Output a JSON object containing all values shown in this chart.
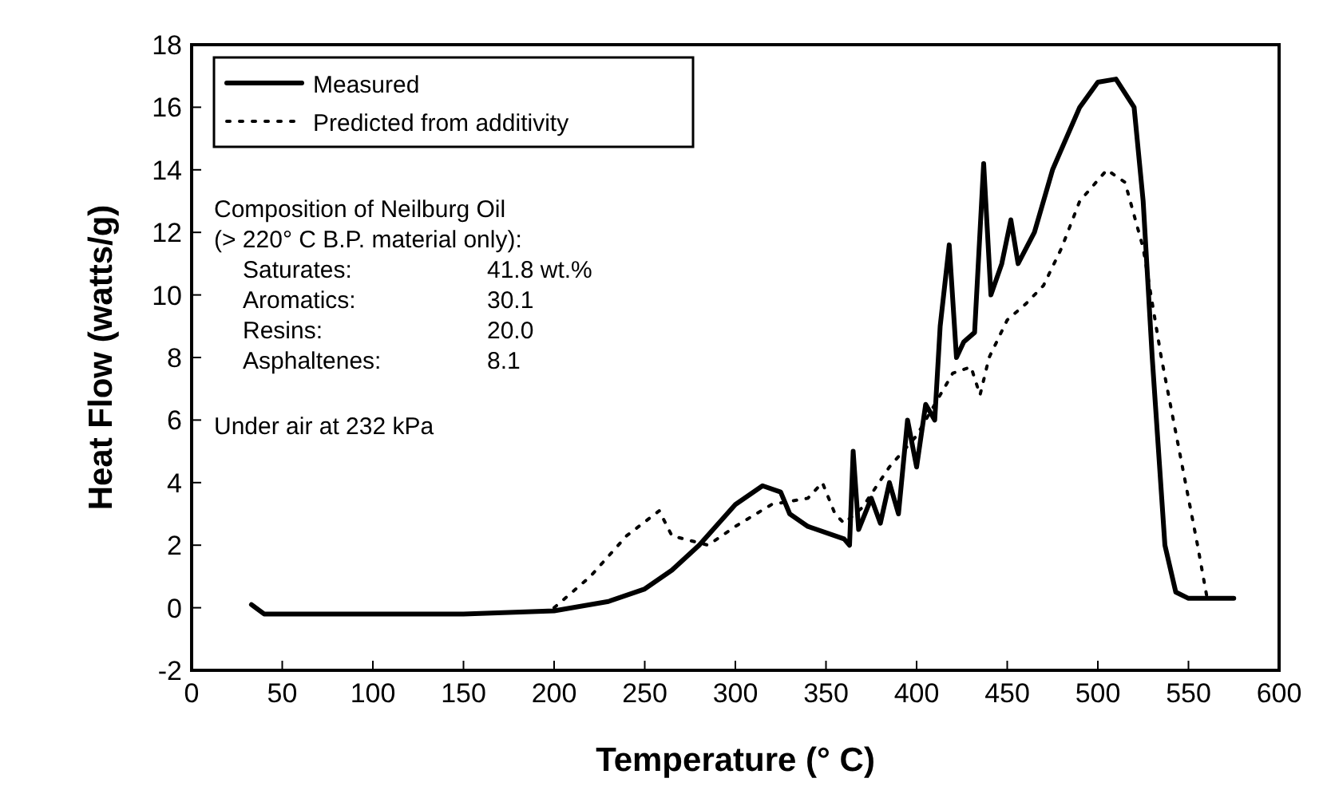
{
  "chart_data": {
    "type": "line",
    "xlabel": "Temperature (° C)",
    "ylabel": "Heat Flow (watts/g)",
    "xlim": [
      0,
      600
    ],
    "xticks": [
      0,
      50,
      100,
      150,
      200,
      250,
      300,
      350,
      400,
      450,
      500,
      550,
      600
    ],
    "ylim": [
      -2,
      18
    ],
    "yticks": [
      -2,
      0,
      2,
      4,
      6,
      8,
      10,
      12,
      14,
      16,
      18
    ],
    "grid": false,
    "legend": "top left",
    "annotations": [
      "Composition of Neilburg Oil",
      "(> 220° C B.P. material only):",
      "Saturates:      41.8 wt.%",
      "Aromatics:      30.1",
      "Resins:           20.0",
      "Asphaltenes:  8.1",
      "Under air at 232 kPa"
    ],
    "series": [
      {
        "name": "Measured",
        "color": "#000000",
        "line_style": "solid",
        "x": [
          33,
          40,
          100,
          150,
          200,
          230,
          250,
          265,
          280,
          300,
          315,
          325,
          330,
          340,
          360,
          363,
          365,
          368,
          375,
          380,
          385,
          390,
          395,
          400,
          405,
          410,
          413,
          418,
          422,
          426,
          432,
          437,
          441,
          447,
          452,
          456,
          465,
          475,
          490,
          500,
          510,
          520,
          525,
          530,
          537,
          543,
          550,
          575
        ],
        "values": [
          0.1,
          -0.2,
          -0.2,
          -0.2,
          -0.1,
          0.2,
          0.6,
          1.2,
          2,
          3.3,
          3.9,
          3.7,
          3,
          2.6,
          2.2,
          2,
          5,
          2.5,
          3.5,
          2.7,
          4,
          3,
          6,
          4.5,
          6.5,
          6,
          9,
          11.6,
          8,
          8.5,
          8.8,
          14.2,
          10,
          11,
          12.4,
          11,
          12,
          14,
          16,
          16.8,
          16.9,
          16,
          13,
          8,
          2,
          0.5,
          0.3,
          0.3
        ]
      },
      {
        "name": "Predicted from additivity",
        "color": "#000000",
        "line_style": "dotted",
        "x": [
          200,
          220,
          240,
          258,
          265,
          285,
          300,
          320,
          340,
          348,
          355,
          360,
          370,
          385,
          400,
          410,
          420,
          430,
          435,
          440,
          450,
          460,
          470,
          480,
          490,
          505,
          515,
          525,
          535,
          545,
          555,
          560
        ],
        "values": [
          0,
          1,
          2.3,
          3.1,
          2.3,
          2,
          2.6,
          3.3,
          3.5,
          4,
          3,
          2.7,
          3.2,
          4.5,
          5.5,
          6.5,
          7.5,
          7.7,
          6.8,
          8,
          9.2,
          9.7,
          10.3,
          11.5,
          13,
          14,
          13.6,
          11.5,
          8,
          5,
          2,
          0.4
        ]
      }
    ]
  }
}
